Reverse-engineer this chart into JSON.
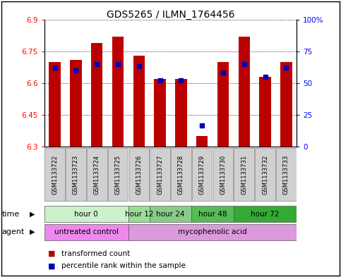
{
  "title": "GDS5265 / ILMN_1764456",
  "samples": [
    "GSM1133722",
    "GSM1133723",
    "GSM1133724",
    "GSM1133725",
    "GSM1133726",
    "GSM1133727",
    "GSM1133728",
    "GSM1133729",
    "GSM1133730",
    "GSM1133731",
    "GSM1133732",
    "GSM1133733"
  ],
  "bar_values": [
    6.7,
    6.71,
    6.79,
    6.82,
    6.73,
    6.62,
    6.62,
    6.35,
    6.7,
    6.82,
    6.63,
    6.7
  ],
  "percentile_values": [
    62,
    60,
    65,
    65,
    63,
    52,
    52,
    17,
    58,
    65,
    55,
    62
  ],
  "bar_bottom": 6.3,
  "ylim_left": [
    6.3,
    6.9
  ],
  "ylim_right": [
    0,
    100
  ],
  "yticks_left": [
    6.3,
    6.45,
    6.6,
    6.75,
    6.9
  ],
  "ytick_labels_left": [
    "6.3",
    "6.45",
    "6.6",
    "6.75",
    "6.9"
  ],
  "yticks_right": [
    0,
    25,
    50,
    75,
    100
  ],
  "ytick_labels_right": [
    "0",
    "25",
    "50",
    "75",
    "100%"
  ],
  "bar_color": "#bb0000",
  "blue_color": "#0000bb",
  "time_groups": [
    {
      "label": "hour 0",
      "start": 0,
      "end": 4
    },
    {
      "label": "hour 12",
      "start": 4,
      "end": 5
    },
    {
      "label": "hour 24",
      "start": 5,
      "end": 7
    },
    {
      "label": "hour 48",
      "start": 7,
      "end": 9
    },
    {
      "label": "hour 72",
      "start": 9,
      "end": 12
    }
  ],
  "time_colors": [
    "#ccf0cc",
    "#99dd99",
    "#88cc88",
    "#55bb55",
    "#33aa33"
  ],
  "agent_groups": [
    {
      "label": "untreated control",
      "start": 0,
      "end": 4
    },
    {
      "label": "mycophenolic acid",
      "start": 4,
      "end": 12
    }
  ],
  "agent_colors": [
    "#ee88ee",
    "#dd99dd"
  ],
  "legend_items": [
    {
      "color": "#bb0000",
      "label": "transformed count"
    },
    {
      "color": "#0000bb",
      "label": "percentile rank within the sample"
    }
  ],
  "bar_width": 0.55,
  "title_fontsize": 10,
  "tick_fontsize": 7.5,
  "sample_fontsize": 6.0,
  "row_fontsize": 7.5
}
